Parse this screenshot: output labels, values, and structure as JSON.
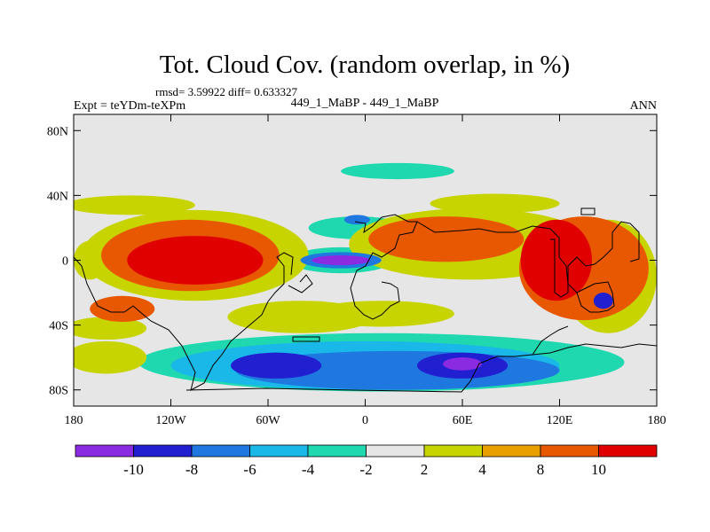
{
  "title": "Tot. Cloud Cov. (random overlap, in %)",
  "stats": "rmsd= 3.59922 diff= 0.633327",
  "left_label": "Expt = teYDm-teXPm",
  "center_label": "449_1_MaBP - 449_1_MaBP",
  "right_label": "ANN",
  "map": {
    "lon_range": [
      -180,
      180
    ],
    "lat_range": [
      -90,
      90
    ],
    "x_ticks": [
      {
        "lon": -180,
        "label": "180"
      },
      {
        "lon": -120,
        "label": "120W"
      },
      {
        "lon": -60,
        "label": "60W"
      },
      {
        "lon": 0,
        "label": "0"
      },
      {
        "lon": 60,
        "label": "60E"
      },
      {
        "lon": 120,
        "label": "120E"
      },
      {
        "lon": 180,
        "label": "180"
      }
    ],
    "y_ticks": [
      {
        "lat": 80,
        "label": "80N"
      },
      {
        "lat": 40,
        "label": "40N"
      },
      {
        "lat": 0,
        "label": "0"
      },
      {
        "lat": -40,
        "label": "40S"
      },
      {
        "lat": -80,
        "label": "80S"
      }
    ],
    "background_color": "#e6e6e6",
    "anomalies": [
      {
        "lon": -105,
        "lat": 0,
        "rx": 42,
        "ry": 15,
        "level": 10
      },
      {
        "lon": -108,
        "lat": 3,
        "rx": 55,
        "ry": 22,
        "level": 8
      },
      {
        "lon": -105,
        "lat": 3,
        "rx": 70,
        "ry": 28,
        "level": 4
      },
      {
        "lon": -150,
        "lat": -30,
        "rx": 20,
        "ry": 8,
        "level": 8
      },
      {
        "lon": -170,
        "lat": 0,
        "rx": 10,
        "ry": 12,
        "level": 4
      },
      {
        "lon": 50,
        "lat": 13,
        "rx": 48,
        "ry": 14,
        "level": 8
      },
      {
        "lon": 65,
        "lat": 10,
        "rx": 75,
        "ry": 22,
        "level": 4
      },
      {
        "lon": 118,
        "lat": 0,
        "rx": 22,
        "ry": 25,
        "level": 10
      },
      {
        "lon": 135,
        "lat": -5,
        "rx": 40,
        "ry": 32,
        "level": 8
      },
      {
        "lon": 150,
        "lat": -10,
        "rx": 30,
        "ry": 35,
        "level": 4
      },
      {
        "lon": -40,
        "lat": -35,
        "rx": 45,
        "ry": 10,
        "level": 4
      },
      {
        "lon": 10,
        "lat": -33,
        "rx": 45,
        "ry": 8,
        "level": 4
      },
      {
        "lon": -160,
        "lat": -42,
        "rx": 25,
        "ry": 7,
        "level": 4
      },
      {
        "lon": -145,
        "lat": 34,
        "rx": 40,
        "ry": 6,
        "level": 4
      },
      {
        "lon": 80,
        "lat": 35,
        "rx": 40,
        "ry": 6,
        "level": 4
      },
      {
        "lon": -15,
        "lat": 0,
        "rx": 32,
        "ry": 8,
        "level": -2
      },
      {
        "lon": -15,
        "lat": 0,
        "rx": 25,
        "ry": 5,
        "level": -6
      },
      {
        "lon": -15,
        "lat": 0,
        "rx": 18,
        "ry": 3,
        "level": -10
      },
      {
        "lon": 20,
        "lat": 55,
        "rx": 35,
        "ry": 5,
        "level": -2
      },
      {
        "lon": -5,
        "lat": 20,
        "rx": 30,
        "ry": 7,
        "level": -2
      },
      {
        "lon": 10,
        "lat": -63,
        "rx": 150,
        "ry": 18,
        "level": -2
      },
      {
        "lon": 0,
        "lat": -65,
        "rx": 120,
        "ry": 15,
        "level": -4
      },
      {
        "lon": 20,
        "lat": -68,
        "rx": 100,
        "ry": 12,
        "level": -6
      },
      {
        "lon": 60,
        "lat": -65,
        "rx": 28,
        "ry": 8,
        "level": -8
      },
      {
        "lon": 60,
        "lat": -64,
        "rx": 12,
        "ry": 4,
        "level": -10
      },
      {
        "lon": -55,
        "lat": -65,
        "rx": 28,
        "ry": 8,
        "level": -8
      },
      {
        "lon": 118,
        "lat": 12,
        "rx": 5,
        "ry": 4,
        "level": -8
      },
      {
        "lon": 147,
        "lat": -25,
        "rx": 6,
        "ry": 5,
        "level": -8
      },
      {
        "lon": -5,
        "lat": 25,
        "rx": 8,
        "ry": 3,
        "level": -6
      },
      {
        "lon": -160,
        "lat": -60,
        "rx": 25,
        "ry": 10,
        "level": 4
      }
    ]
  },
  "colorbar": {
    "colors": [
      "#8a2be2",
      "#2020d0",
      "#1e78e0",
      "#1ab8e8",
      "#20d8b0",
      "#e6e6e6",
      "#c8d400",
      "#e8a000",
      "#e85800",
      "#e00000"
    ],
    "labels": [
      "-10",
      "-8",
      "-6",
      "-4",
      "-2",
      "2",
      "4",
      "8",
      "10"
    ]
  }
}
